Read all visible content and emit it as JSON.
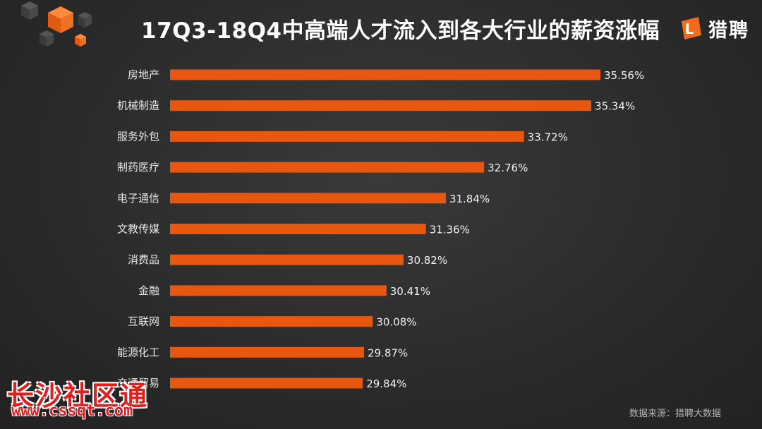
{
  "header": {
    "title": "17Q3-18Q4中高端人才流入到各大行业的薪资涨幅",
    "brand_name": "猎聘",
    "brand_mark_letter": "L"
  },
  "colors": {
    "bar": "#e8570f",
    "accent": "#f26b1d",
    "background": "#2b2b2b",
    "text": "#e8e8e8"
  },
  "chart_data": {
    "type": "bar",
    "orientation": "horizontal",
    "title": "17Q3-18Q4中高端人才流入到各大行业的薪资涨幅",
    "categories": [
      "房地产",
      "机械制造",
      "服务外包",
      "制药医疗",
      "电子通信",
      "文教传媒",
      "消费品",
      "金融",
      "互联网",
      "能源化工",
      "交通贸易"
    ],
    "values": [
      35.56,
      35.34,
      33.72,
      32.76,
      31.84,
      31.36,
      30.82,
      30.41,
      30.08,
      29.87,
      29.84
    ],
    "value_labels": [
      "35.56%",
      "35.34%",
      "33.72%",
      "32.76%",
      "31.84%",
      "31.36%",
      "30.82%",
      "30.41%",
      "30.08%",
      "29.87%",
      "29.84%"
    ],
    "xlim": [
      25.2,
      35.56
    ],
    "grid": false,
    "legend": "none"
  },
  "footer": {
    "source": "数据来源：猎聘大数据"
  },
  "watermark": {
    "line1": "长沙社区通",
    "line2": "www.cssqt.com"
  }
}
